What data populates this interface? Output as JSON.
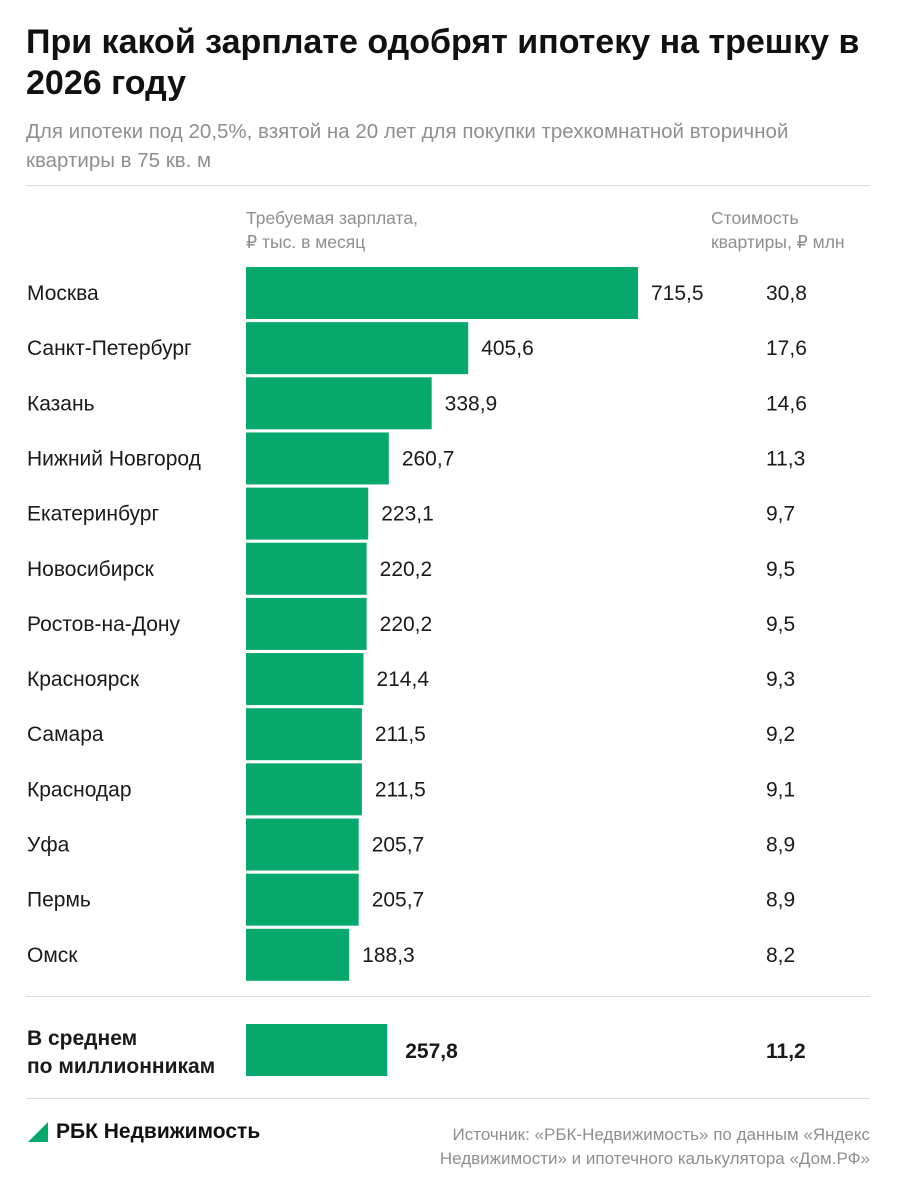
{
  "header": {
    "title": "При какой зарплате одобрят ипотеку на трешку в 2026 году",
    "subtitle": "Для ипотеки под 20,5%, взятой на 20 лет для покупки трехкомнатной вторичной квартиры в 75 кв. м"
  },
  "columns": {
    "salary_line1": "Требуемая зарплата,",
    "salary_line2": "₽ тыс. в месяц",
    "price_line1": "Стоимость",
    "price_line2": "квартиры, ₽ млн"
  },
  "chart_data": {
    "type": "bar",
    "orientation": "horizontal",
    "categories": [
      "Москва",
      "Санкт-Петербург",
      "Казань",
      "Нижний Новгород",
      "Екатеринбург",
      "Новосибирск",
      "Ростов-на-Дону",
      "Красноярск",
      "Самара",
      "Краснодар",
      "Уфа",
      "Пермь",
      "Омск"
    ],
    "values": [
      715.5,
      405.6,
      338.9,
      260.7,
      223.1,
      220.2,
      220.2,
      214.4,
      211.5,
      211.5,
      205.7,
      205.7,
      188.3
    ],
    "value_labels": [
      "715,5",
      "405,6",
      "338,9",
      "260,7",
      "223,1",
      "220,2",
      "220,2",
      "214,4",
      "211,5",
      "211,5",
      "205,7",
      "205,7",
      "188,3"
    ],
    "prices": [
      "30,8",
      "17,6",
      "14,6",
      "11,3",
      "9,7",
      "9,5",
      "9,5",
      "9,3",
      "9,2",
      "9,1",
      "8,9",
      "8,9",
      "8,2"
    ],
    "summary": {
      "label_line1": "В среднем",
      "label_line2": "по миллионникам",
      "value": 257.8,
      "value_label": "257,8",
      "price": "11,2"
    },
    "bar_color": "#06a86b",
    "xlim": [
      0,
      715.5
    ]
  },
  "footer": {
    "brand": "РБК Недвижимость",
    "source_line1": "Источник: «РБК-Недвижимость» по данным «Яндекс",
    "source_line2": "Недвижимости» и ипотечного калькулятора «Дом.РФ»",
    "logo_color": "#06a86b"
  }
}
